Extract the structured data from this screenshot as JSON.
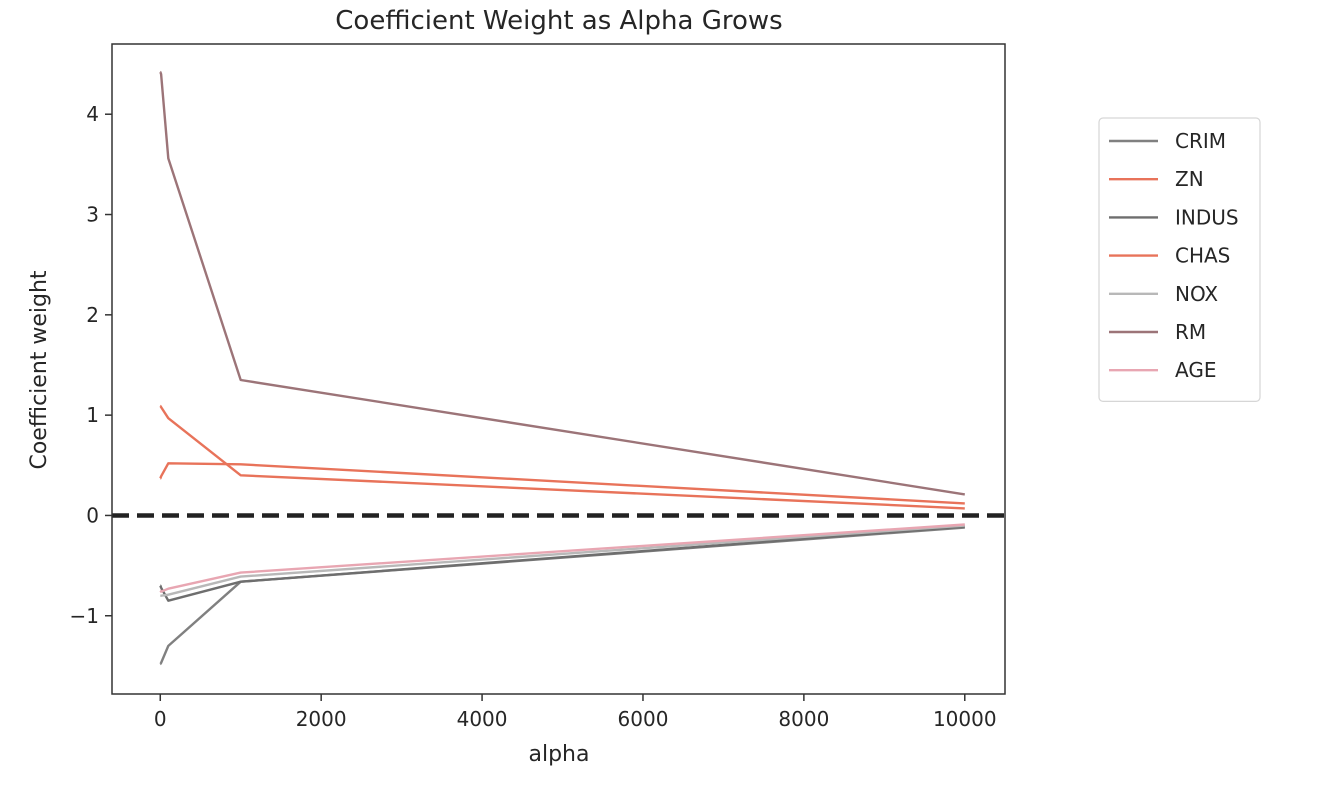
{
  "chart_data": {
    "type": "line",
    "title": "Coefficient Weight as Alpha Grows",
    "xlabel": "alpha",
    "ylabel": "Coefficient weight",
    "xlim": [
      -600,
      10500
    ],
    "ylim": [
      -1.78,
      4.7
    ],
    "xticks": [
      0,
      2000,
      4000,
      6000,
      8000,
      10000
    ],
    "xtick_labels": [
      "0",
      "2000",
      "4000",
      "6000",
      "8000",
      "10000"
    ],
    "yticks": [
      -1,
      0,
      1,
      2,
      3,
      4
    ],
    "ytick_labels": [
      "−1",
      "0",
      "1",
      "2",
      "3",
      "4"
    ],
    "grid": false,
    "legend_position": "upper right, outside plot",
    "x": [
      0.01,
      0.1,
      1,
      10,
      100,
      1000,
      10000
    ],
    "series": [
      {
        "name": "CRIM",
        "color": "#808080",
        "values": [
          -1.48,
          -1.48,
          -1.48,
          -1.47,
          -1.3,
          -0.66,
          -0.12
        ]
      },
      {
        "name": "ZN",
        "color": "#E8735A",
        "values": [
          1.09,
          1.09,
          1.09,
          1.08,
          0.97,
          0.4,
          0.07
        ]
      },
      {
        "name": "INDUS",
        "color": "#6e6e6e",
        "values": [
          -0.7,
          -0.7,
          -0.7,
          -0.72,
          -0.85,
          -0.66,
          -0.11
        ]
      },
      {
        "name": "CHAS",
        "color": "#E8735A",
        "values": [
          0.37,
          0.37,
          0.37,
          0.39,
          0.52,
          0.51,
          0.12
        ]
      },
      {
        "name": "NOX",
        "color": "#b8b8b8",
        "values": [
          -0.8,
          -0.8,
          -0.8,
          -0.8,
          -0.79,
          -0.61,
          -0.1
        ]
      },
      {
        "name": "RM",
        "color": "#9c7478",
        "values": [
          4.42,
          4.42,
          4.42,
          4.4,
          3.56,
          1.35,
          0.21
        ]
      },
      {
        "name": "AGE",
        "color": "#e8a6b2",
        "values": [
          -0.75,
          -0.75,
          -0.75,
          -0.76,
          -0.73,
          -0.57,
          -0.09
        ]
      }
    ],
    "reference_line": {
      "y": 0,
      "style": "dashed",
      "color": "#222222"
    }
  }
}
